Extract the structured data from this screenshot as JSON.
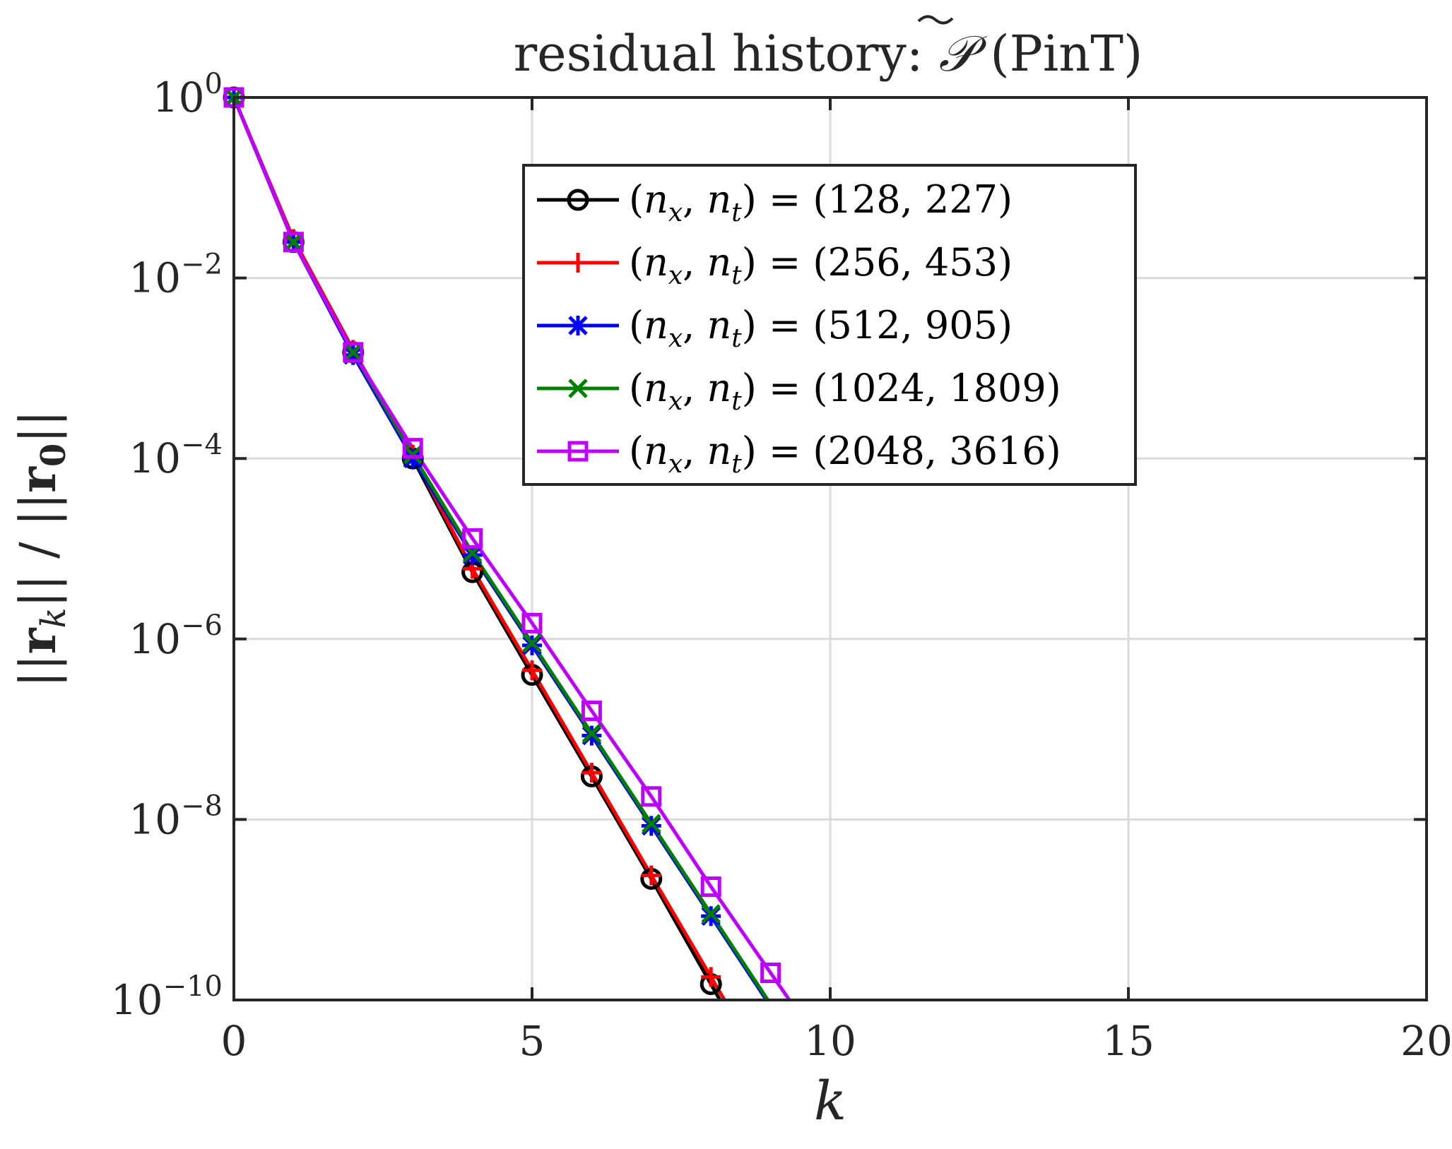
{
  "chart_data": {
    "type": "line",
    "title": "residual history: P̃ (PinT)",
    "title_prefix": "residual history: ",
    "title_symbol": "𝒫",
    "title_suffix": "(PinT)",
    "xlabel": "k",
    "ylabel": "||r_k|| / ||r_0||",
    "xlim": [
      0,
      20
    ],
    "ylim": [
      1e-10,
      1
    ],
    "yscale": "log",
    "grid": true,
    "legend_location": "top-center",
    "x_ticks": [
      "0",
      "5",
      "10",
      "15",
      "20"
    ],
    "x_tick_values": [
      0,
      5,
      10,
      15,
      20
    ],
    "y_tick_values": [
      1.0,
      0.01,
      0.0001,
      1e-06,
      1e-08,
      1e-10
    ],
    "y_ticks": [
      {
        "base": "10",
        "exp": "0"
      },
      {
        "base": "10",
        "exp": "−2"
      },
      {
        "base": "10",
        "exp": "−4"
      },
      {
        "base": "10",
        "exp": "−6"
      },
      {
        "base": "10",
        "exp": "−8"
      },
      {
        "base": "10",
        "exp": "−10"
      }
    ],
    "series": [
      {
        "name": "(n_x, n_t) = (128, 227)",
        "legend_lhs": "(n",
        "legend_values": "(128, 227)",
        "color": "#000000",
        "marker": "circle",
        "x": [
          0,
          1,
          2,
          3,
          4,
          5,
          6,
          7,
          8
        ],
        "y": [
          1,
          0.025,
          0.0015,
          0.0001,
          5.5e-06,
          4e-07,
          3e-08,
          2.2e-09,
          1.5e-10
        ],
        "tail_x": 8.2
      },
      {
        "name": "(n_x, n_t) = (256, 453)",
        "legend_lhs": "(n",
        "legend_values": "(256, 453)",
        "color": "#ff0000",
        "marker": "plus",
        "x": [
          0,
          1,
          2,
          3,
          4,
          5,
          6,
          7,
          8
        ],
        "y": [
          1,
          0.027,
          0.0016,
          0.00011,
          6e-06,
          4.5e-07,
          3.3e-08,
          2.4e-09,
          1.8e-10
        ],
        "tail_x": 8.15
      },
      {
        "name": "(n_x, n_t) = (512, 905)",
        "legend_lhs": "(n",
        "legend_values": "(512, 905)",
        "color": "#0000ff",
        "marker": "asterisk",
        "x": [
          0,
          1,
          2,
          3,
          4,
          5,
          6,
          7,
          8
        ],
        "y": [
          1,
          0.025,
          0.0014,
          0.0001,
          8.5e-06,
          8.5e-07,
          8.5e-08,
          8.5e-09,
          8.5e-10
        ],
        "tail_x": 8.95
      },
      {
        "name": "(n_x, n_t) = (1024, 1809)",
        "legend_lhs": "(n",
        "legend_values": "(1024, 1809)",
        "color": "#008000",
        "marker": "cross",
        "x": [
          0,
          1,
          2,
          3,
          4,
          5,
          6,
          7,
          8
        ],
        "y": [
          1,
          0.025,
          0.0015,
          0.00011,
          9e-06,
          9e-07,
          9e-08,
          9e-09,
          9e-10
        ],
        "tail_x": 9.0
      },
      {
        "name": "(n_x, n_t) = (2048, 3616)",
        "legend_lhs": "(n",
        "legend_values": "(2048, 3616)",
        "color": "#c000ff",
        "marker": "square",
        "x": [
          0,
          1,
          2,
          3,
          4,
          5,
          6,
          7,
          8,
          9
        ],
        "y": [
          1,
          0.025,
          0.0015,
          0.00013,
          1.3e-05,
          1.5e-06,
          1.6e-07,
          1.8e-08,
          1.8e-09,
          2e-10
        ],
        "tail_x": 9.3
      }
    ]
  }
}
